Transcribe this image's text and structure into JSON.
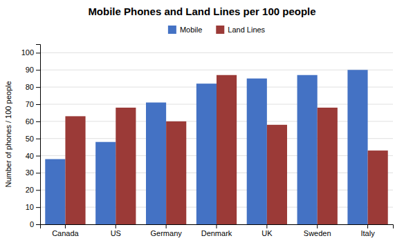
{
  "chart_data": {
    "type": "bar",
    "title": "Mobile Phones and Land Lines per 100 people",
    "categories": [
      "Canada",
      "US",
      "Germany",
      "Denmark",
      "UK",
      "Sweden",
      "Italy"
    ],
    "series": [
      {
        "name": "Mobile",
        "color": "#4472C4",
        "values": [
          38,
          48,
          71,
          82,
          85,
          87,
          90
        ]
      },
      {
        "name": "Land Lines",
        "color": "#9B3A37",
        "values": [
          63,
          68,
          60,
          87,
          58,
          68,
          43
        ]
      }
    ],
    "ylabel": "Number of phones / 100 people",
    "ylim": [
      0,
      105
    ],
    "yticks": [
      0,
      10,
      20,
      30,
      40,
      50,
      60,
      70,
      80,
      90,
      100
    ],
    "grid": true,
    "legend": "top"
  }
}
